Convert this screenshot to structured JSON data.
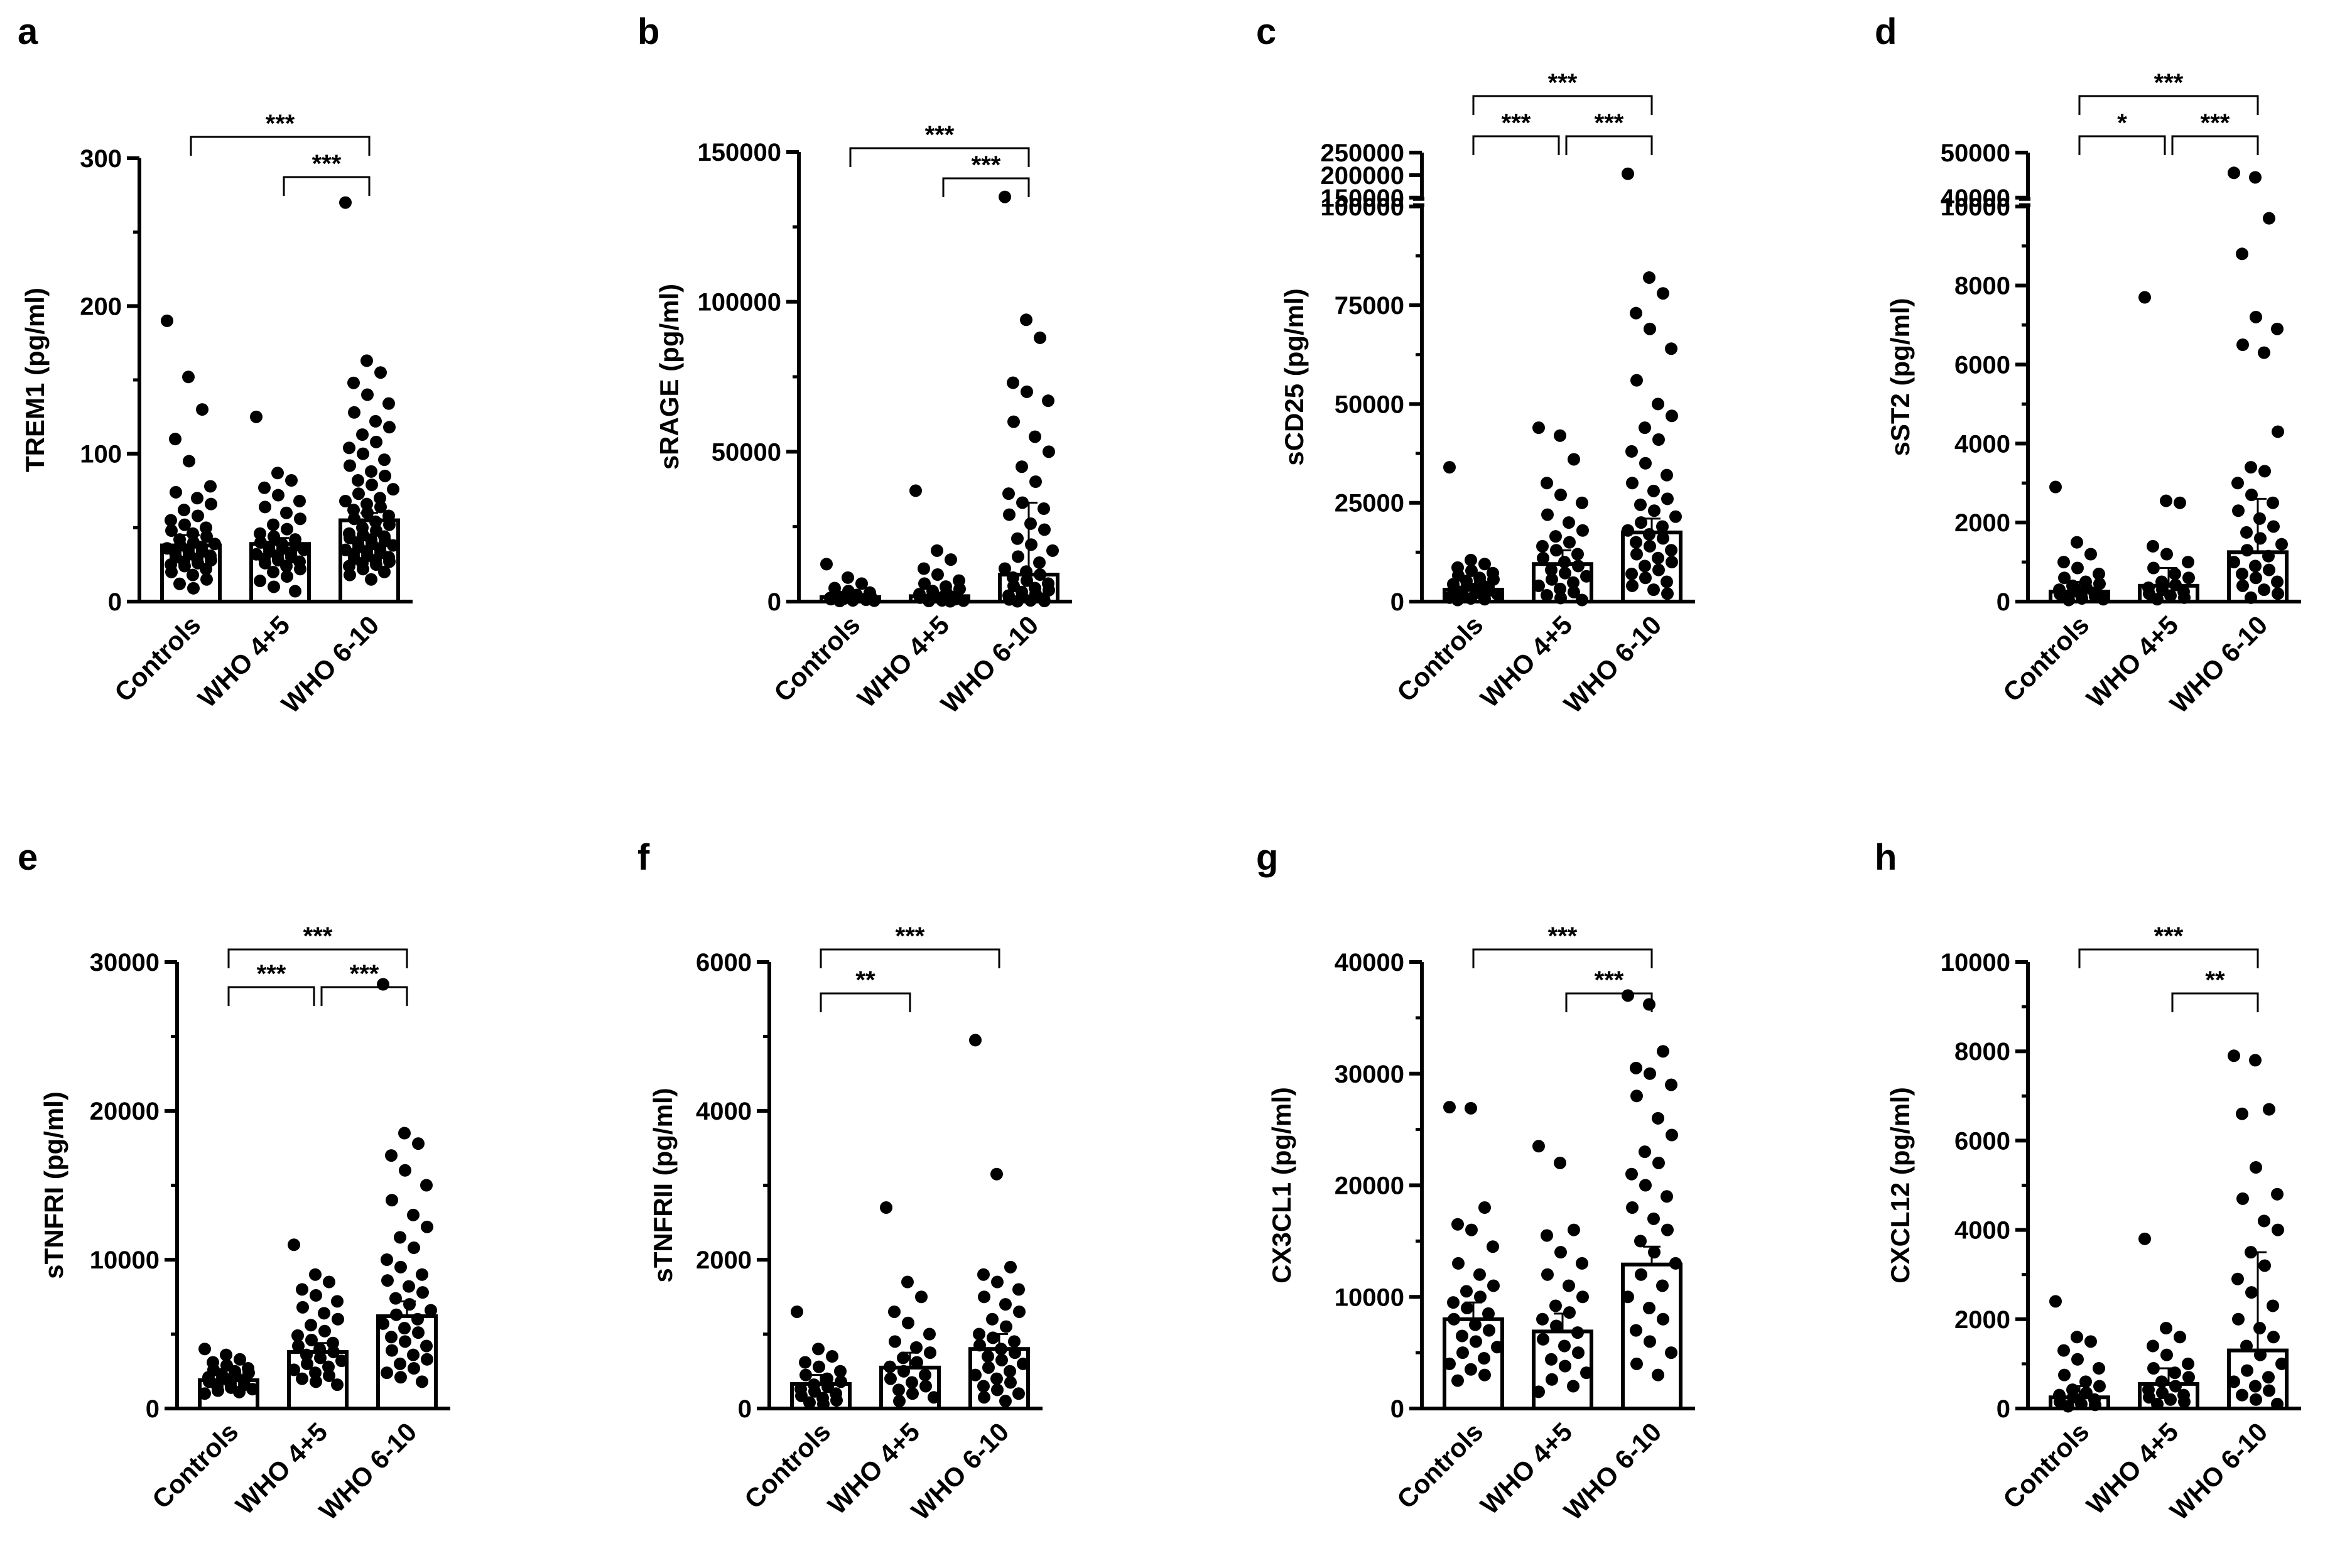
{
  "figure": {
    "background": "#ffffff",
    "ink": "#000000",
    "bar_fill": "#ffffff"
  },
  "chart_data": [
    {
      "type": "bar",
      "panel": "a",
      "title": "",
      "ylabel": "TREM1 (pg/ml)",
      "categories": [
        "Controls",
        "WHO 4+5",
        "WHO 6-10"
      ],
      "values": [
        38,
        39,
        55
      ],
      "error_upper": [
        45,
        43,
        60
      ],
      "ylim": [
        0,
        300
      ],
      "yticks": [
        0,
        100,
        200,
        300
      ],
      "ytick_labels": [
        "0",
        "100",
        "200",
        "300"
      ],
      "minor_step": 50,
      "points": [
        [
          190,
          152,
          130,
          110,
          95,
          78,
          74,
          70,
          66,
          62,
          58,
          55,
          52,
          50,
          48,
          46,
          44,
          42,
          40,
          39,
          38,
          37,
          36,
          35,
          34,
          33,
          32,
          31,
          30,
          29,
          28,
          27,
          26,
          25,
          24,
          22,
          20,
          18,
          15,
          12,
          9
        ],
        [
          125,
          87,
          82,
          77,
          72,
          68,
          64,
          60,
          56,
          52,
          49,
          46,
          44,
          42,
          40,
          39,
          38,
          37,
          36,
          35,
          34,
          33,
          32,
          31,
          30,
          29,
          28,
          27,
          26,
          24,
          22,
          20,
          17,
          14,
          10,
          7
        ],
        [
          270,
          163,
          155,
          148,
          140,
          134,
          128,
          122,
          118,
          113,
          108,
          104,
          100,
          96,
          92,
          88,
          85,
          82,
          79,
          76,
          73,
          70,
          68,
          66,
          64,
          62,
          60,
          58,
          56,
          54,
          52,
          50,
          48,
          46,
          45,
          44,
          43,
          42,
          41,
          40,
          39,
          38,
          37,
          36,
          35,
          34,
          33,
          32,
          31,
          30,
          29,
          28,
          27,
          26,
          25,
          24,
          22,
          20,
          18,
          15
        ]
      ],
      "comparisons": [
        {
          "from": 0,
          "to": 2,
          "label": "***"
        },
        {
          "from": 1,
          "to": 2,
          "label": "***"
        }
      ]
    },
    {
      "type": "bar",
      "panel": "b",
      "title": "",
      "ylabel": "sRAGE (pg/ml)",
      "categories": [
        "Controls",
        "WHO 4+5",
        "WHO 6-10"
      ],
      "values": [
        1500,
        1800,
        9000
      ],
      "error_upper": [
        2500,
        3000,
        33000
      ],
      "ylim": [
        0,
        150000
      ],
      "yticks": [
        0,
        50000,
        100000,
        150000
      ],
      "ytick_labels": [
        "0",
        "50000",
        "100000",
        "150000"
      ],
      "minor_step": 25000,
      "points": [
        [
          12500,
          8000,
          6000,
          4500,
          3500,
          3000,
          2600,
          2200,
          1900,
          1600,
          1400,
          1200,
          1000,
          900,
          800,
          700,
          600,
          500,
          400,
          300,
          200
        ],
        [
          37000,
          17000,
          14000,
          11000,
          9000,
          7000,
          6000,
          5000,
          4200,
          3500,
          3000,
          2500,
          2000,
          1600,
          1300,
          1000,
          800,
          600,
          400,
          300,
          200,
          100
        ],
        [
          135000,
          94000,
          88000,
          73000,
          70000,
          67000,
          60000,
          55000,
          50000,
          45000,
          40000,
          36000,
          33000,
          31000,
          29000,
          26000,
          24000,
          21000,
          19000,
          17000,
          15000,
          13000,
          11000,
          10000,
          9000,
          8000,
          7000,
          6000,
          5200,
          4500,
          3800,
          3200,
          2600,
          2000,
          1500,
          1000,
          700,
          400,
          200,
          100
        ]
      ],
      "comparisons": [
        {
          "from": 0,
          "to": 2,
          "label": "***"
        },
        {
          "from": 1,
          "to": 2,
          "label": "***"
        }
      ]
    },
    {
      "type": "bar",
      "panel": "c",
      "title": "",
      "ylabel": "sCD25 (pg/ml)",
      "categories": [
        "Controls",
        "WHO 4+5",
        "WHO 6-10"
      ],
      "values": [
        3000,
        9500,
        17500
      ],
      "error_upper": [
        4500,
        13000,
        21000
      ],
      "ylim": [
        0,
        250000
      ],
      "broken_axis": {
        "lower_max": 100000,
        "upper_min": 150000,
        "upper_max": 250000
      },
      "yticks": [
        0,
        25000,
        50000,
        75000,
        100000,
        150000,
        200000,
        250000
      ],
      "ytick_labels": [
        "0",
        "25000",
        "50000",
        "75000",
        "100000",
        "150000",
        "200000",
        "250000"
      ],
      "minor_step": 12500,
      "points": [
        [
          34000,
          10500,
          9500,
          8600,
          7800,
          7200,
          6600,
          6000,
          5600,
          5200,
          4800,
          4400,
          4000,
          3700,
          3400,
          3100,
          2800,
          2500,
          2200,
          1900,
          1600,
          1300,
          1000,
          800,
          600,
          400
        ],
        [
          44000,
          42000,
          36000,
          30000,
          27000,
          25000,
          22000,
          20000,
          18000,
          16500,
          15000,
          14000,
          13000,
          12000,
          11000,
          10000,
          9000,
          8000,
          7200,
          6400,
          5600,
          4800,
          4000,
          3200,
          2400,
          1600,
          900,
          400
        ],
        [
          203000,
          82000,
          78000,
          73000,
          69000,
          64000,
          56000,
          50000,
          47000,
          44000,
          41000,
          38000,
          35000,
          32000,
          30000,
          28000,
          26000,
          24500,
          23000,
          21500,
          20000,
          19000,
          18000,
          17000,
          16000,
          15000,
          14000,
          13000,
          12000,
          11000,
          10000,
          9000,
          8000,
          7000,
          6000,
          5000,
          4000,
          3000,
          2000
        ]
      ],
      "comparisons": [
        {
          "from": 0,
          "to": 2,
          "label": "***"
        },
        {
          "from": 0,
          "to": 1,
          "label": "***"
        },
        {
          "from": 1,
          "to": 2,
          "label": "***"
        }
      ]
    },
    {
      "type": "bar",
      "panel": "d",
      "title": "",
      "ylabel": "sST2 (pg/ml)",
      "categories": [
        "Controls",
        "WHO 4+5",
        "WHO 6-10"
      ],
      "values": [
        250,
        400,
        1250
      ],
      "error_upper": [
        500,
        850,
        2600
      ],
      "ylim": [
        0,
        50000
      ],
      "broken_axis": {
        "lower_max": 10000,
        "upper_min": 40000,
        "upper_max": 50000
      },
      "yticks": [
        0,
        2000,
        4000,
        6000,
        8000,
        10000,
        40000,
        50000
      ],
      "ytick_labels": [
        "0",
        "2000",
        "4000",
        "6000",
        "8000",
        "10000",
        "40000",
        "50000"
      ],
      "minor_step": 1000,
      "points": [
        [
          2900,
          1500,
          1200,
          1000,
          850,
          700,
          600,
          500,
          450,
          400,
          350,
          300,
          260,
          220,
          190,
          160,
          130,
          100,
          80,
          60,
          40
        ],
        [
          7700,
          2550,
          2500,
          1400,
          1200,
          1000,
          850,
          700,
          600,
          500,
          420,
          350,
          300,
          250,
          200,
          150,
          100,
          60
        ],
        [
          45500,
          44500,
          9700,
          8800,
          7200,
          6900,
          6500,
          6300,
          4300,
          3400,
          3300,
          3000,
          2700,
          2500,
          2300,
          2100,
          1900,
          1750,
          1600,
          1450,
          1300,
          1150,
          1000,
          900,
          800,
          700,
          600,
          500,
          400,
          300,
          200,
          100
        ]
      ],
      "comparisons": [
        {
          "from": 0,
          "to": 2,
          "label": "***"
        },
        {
          "from": 0,
          "to": 1,
          "label": "*"
        },
        {
          "from": 1,
          "to": 2,
          "label": "***"
        }
      ]
    },
    {
      "type": "bar",
      "panel": "e",
      "title": "",
      "ylabel": "sTNFRI (pg/ml)",
      "categories": [
        "Controls",
        "WHO 4+5",
        "WHO 6-10"
      ],
      "values": [
        1900,
        3800,
        6200
      ],
      "error_upper": [
        2300,
        4400,
        7200
      ],
      "ylim": [
        0,
        30000
      ],
      "yticks": [
        0,
        10000,
        20000,
        30000
      ],
      "ytick_labels": [
        "0",
        "10000",
        "20000",
        "30000"
      ],
      "minor_step": 5000,
      "points": [
        [
          4000,
          3600,
          3300,
          3100,
          2900,
          2700,
          2600,
          2500,
          2400,
          2300,
          2200,
          2100,
          2000,
          1900,
          1800,
          1700,
          1600,
          1500,
          1400,
          1300,
          1200,
          1100,
          1000
        ],
        [
          11000,
          9000,
          8500,
          8000,
          7600,
          7200,
          6800,
          6400,
          6000,
          5600,
          5200,
          4900,
          4600,
          4400,
          4200,
          4000,
          3800,
          3600,
          3400,
          3200,
          3000,
          2800,
          2600,
          2400,
          2200,
          2000,
          1800,
          1600
        ],
        [
          28500,
          18500,
          17800,
          17000,
          16000,
          15000,
          14000,
          13000,
          12200,
          11500,
          10800,
          10000,
          9500,
          9000,
          8600,
          8200,
          7800,
          7400,
          7000,
          6600,
          6300,
          6000,
          5700,
          5400,
          5100,
          4800,
          4500,
          4200,
          3900,
          3600,
          3300,
          3000,
          2700,
          2400,
          2100,
          1800
        ]
      ],
      "comparisons": [
        {
          "from": 0,
          "to": 2,
          "label": "***"
        },
        {
          "from": 0,
          "to": 1,
          "label": "***"
        },
        {
          "from": 1,
          "to": 2,
          "label": "***"
        }
      ]
    },
    {
      "type": "bar",
      "panel": "f",
      "title": "",
      "ylabel": "sTNFRII (pg/ml)",
      "categories": [
        "Controls",
        "WHO 4+5",
        "WHO 6-10"
      ],
      "values": [
        330,
        550,
        800
      ],
      "error_upper": [
        450,
        750,
        1000
      ],
      "ylim": [
        0,
        6000
      ],
      "yticks": [
        0,
        2000,
        4000,
        6000
      ],
      "ytick_labels": [
        "0",
        "2000",
        "4000",
        "6000"
      ],
      "minor_step": 1000,
      "points": [
        [
          1300,
          800,
          700,
          620,
          560,
          500,
          450,
          400,
          360,
          320,
          290,
          260,
          230,
          200,
          170,
          140,
          110,
          80,
          60
        ],
        [
          2700,
          1700,
          1500,
          1300,
          1150,
          1000,
          900,
          820,
          750,
          680,
          620,
          560,
          500,
          450,
          400,
          350,
          300,
          250,
          200,
          150,
          100
        ],
        [
          4950,
          3150,
          1900,
          1800,
          1700,
          1600,
          1500,
          1400,
          1300,
          1200,
          1100,
          1000,
          950,
          900,
          850,
          800,
          750,
          700,
          650,
          600,
          550,
          500,
          450,
          400,
          350,
          300,
          250,
          200,
          150,
          100
        ]
      ],
      "comparisons": [
        {
          "from": 0,
          "to": 2,
          "label": "***"
        },
        {
          "from": 0,
          "to": 1,
          "label": "**"
        }
      ]
    },
    {
      "type": "bar",
      "panel": "g",
      "title": "",
      "ylabel": "CX3CL1 (pg/ml)",
      "categories": [
        "Controls",
        "WHO 4+5",
        "WHO 6-10"
      ],
      "values": [
        8000,
        6900,
        12900
      ],
      "error_upper": [
        9500,
        8500,
        14500
      ],
      "ylim": [
        0,
        40000
      ],
      "yticks": [
        0,
        10000,
        20000,
        30000,
        40000
      ],
      "ytick_labels": [
        "0",
        "10000",
        "20000",
        "30000",
        "40000"
      ],
      "minor_step": 5000,
      "points": [
        [
          27000,
          26900,
          18000,
          16500,
          16000,
          14500,
          13000,
          12000,
          11000,
          10500,
          10000,
          9500,
          9000,
          8500,
          8000,
          7500,
          7000,
          6500,
          6000,
          5500,
          5000,
          4500,
          4000,
          3500,
          3000,
          2500
        ],
        [
          23500,
          22000,
          16000,
          15500,
          14000,
          13000,
          12000,
          11000,
          10000,
          9200,
          8600,
          8000,
          7400,
          6800,
          6200,
          5600,
          5000,
          4400,
          3800,
          3200,
          2600,
          2000,
          1500
        ],
        [
          37000,
          36200,
          32000,
          30500,
          30000,
          29000,
          28000,
          26000,
          24500,
          23000,
          22000,
          21000,
          20000,
          19000,
          18000,
          17000,
          16000,
          15000,
          14000,
          13000,
          12000,
          11000,
          10000,
          9000,
          8000,
          7000,
          6000,
          5000,
          4000,
          3000
        ]
      ],
      "comparisons": [
        {
          "from": 0,
          "to": 2,
          "label": "***"
        },
        {
          "from": 1,
          "to": 2,
          "label": "***"
        }
      ]
    },
    {
      "type": "bar",
      "panel": "h",
      "title": "",
      "ylabel": "CXCL12 (pg/ml)",
      "categories": [
        "Controls",
        "WHO 4+5",
        "WHO 6-10"
      ],
      "values": [
        250,
        550,
        1300
      ],
      "error_upper": [
        500,
        900,
        3500
      ],
      "ylim": [
        0,
        10000
      ],
      "yticks": [
        0,
        2000,
        4000,
        6000,
        8000,
        10000
      ],
      "ytick_labels": [
        "0",
        "2000",
        "4000",
        "6000",
        "8000",
        "10000"
      ],
      "minor_step": 1000,
      "points": [
        [
          2400,
          1600,
          1500,
          1300,
          1100,
          900,
          750,
          600,
          500,
          420,
          350,
          300,
          250,
          200,
          150,
          100,
          80,
          50
        ],
        [
          3800,
          1800,
          1600,
          1400,
          1200,
          1000,
          900,
          800,
          700,
          600,
          500,
          420,
          350,
          300,
          250,
          200,
          150,
          100
        ],
        [
          7900,
          7800,
          6700,
          6600,
          5400,
          4800,
          4700,
          4200,
          4000,
          3500,
          3200,
          2900,
          2600,
          2300,
          2000,
          1800,
          1600,
          1400,
          1200,
          1000,
          850,
          700,
          600,
          500,
          400,
          300,
          200,
          100
        ]
      ],
      "comparisons": [
        {
          "from": 0,
          "to": 2,
          "label": "***"
        },
        {
          "from": 1,
          "to": 2,
          "label": "**"
        }
      ]
    }
  ]
}
